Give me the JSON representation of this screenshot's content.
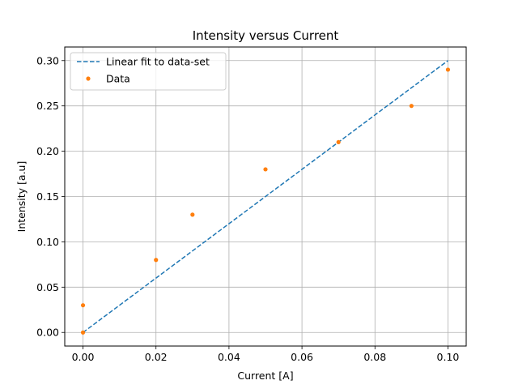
{
  "chart_data": {
    "type": "scatter",
    "title": "Intensity versus Current",
    "xlabel": "Current [A]",
    "ylabel": "Intensity [a.u]",
    "xlim": [
      -0.005,
      0.105
    ],
    "ylim": [
      -0.015,
      0.315
    ],
    "xticks": [
      "0.00",
      "0.02",
      "0.04",
      "0.06",
      "0.08",
      "0.10"
    ],
    "yticks": [
      "0.00",
      "0.05",
      "0.10",
      "0.15",
      "0.20",
      "0.25",
      "0.30"
    ],
    "grid": true,
    "legend_position": "top-left",
    "series": [
      {
        "name": "Linear fit to data-set",
        "kind": "line",
        "style": "dashed",
        "color": "#1f77b4",
        "x": [
          0.0,
          0.1
        ],
        "y": [
          0.0,
          0.3
        ]
      },
      {
        "name": "Data",
        "kind": "scatter",
        "color": "#ff7f0e",
        "x": [
          0.0,
          0.0,
          0.02,
          0.03,
          0.05,
          0.07,
          0.09,
          0.1
        ],
        "y": [
          0.0,
          0.03,
          0.08,
          0.13,
          0.18,
          0.21,
          0.25,
          0.29
        ]
      }
    ]
  }
}
